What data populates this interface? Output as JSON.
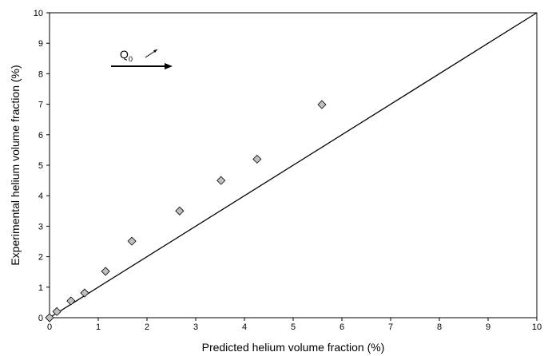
{
  "chart_data": {
    "type": "scatter",
    "xlabel": "Predicted helium volume fraction (%)",
    "ylabel": "Experimental helium volume fraction (%)",
    "annotation": {
      "text": "Q",
      "subscript": "0"
    },
    "xlim": [
      0,
      10
    ],
    "ylim": [
      0,
      10
    ],
    "xticks": [
      0,
      1,
      2,
      3,
      4,
      5,
      6,
      7,
      8,
      9,
      10
    ],
    "yticks": [
      0,
      1,
      2,
      3,
      4,
      5,
      6,
      7,
      8,
      9,
      10
    ],
    "grid": false,
    "series": [
      {
        "color": "#bfbfbf",
        "x": [
          0,
          0.15,
          0.44,
          0.72,
          1.15,
          1.69,
          2.67,
          3.52,
          4.26,
          5.59
        ],
        "values": [
          0,
          0.2,
          0.55,
          0.81,
          1.52,
          2.51,
          3.5,
          4.5,
          5.2,
          6.99
        ]
      }
    ],
    "reference_line": {
      "x": [
        0,
        10
      ],
      "values": [
        0,
        10
      ]
    }
  }
}
